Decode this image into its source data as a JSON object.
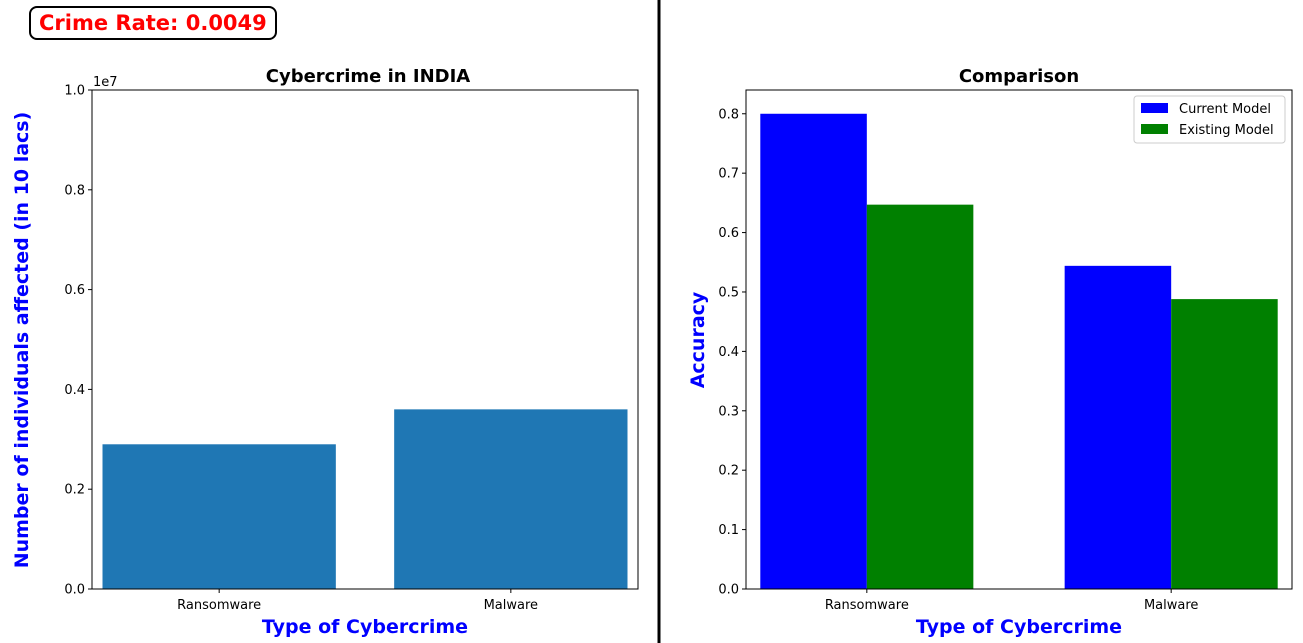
{
  "badge": {
    "text": "Crime Rate: 0.0049",
    "color": "#ff0000"
  },
  "chart_data": [
    {
      "type": "bar",
      "title": "Cybercrime in INDIA",
      "xlabel": "Type of Cybercrime",
      "ylabel": "Number of individuals affected (in 10 lacs)",
      "label_color": "#0000ff",
      "offset_text": "1e7",
      "categories": [
        "Ransomware",
        "Malware"
      ],
      "series": [
        {
          "values": [
            2900000,
            3600000
          ],
          "color": "#1f77b4"
        }
      ],
      "ylim": [
        0,
        10000000
      ],
      "yticks": [
        0,
        2000000,
        4000000,
        6000000,
        8000000,
        10000000
      ],
      "ytick_labels": [
        "0.0",
        "0.2",
        "0.4",
        "0.6",
        "0.8",
        "1.0"
      ],
      "grid": false
    },
    {
      "type": "bar",
      "title": "Comparison",
      "xlabel": "Type of Cybercrime",
      "ylabel": "Accuracy",
      "label_color": "#0000ff",
      "categories": [
        "Ransomware",
        "Malware"
      ],
      "series": [
        {
          "name": "Current Model",
          "values": [
            0.8,
            0.544
          ],
          "color": "#0000ff"
        },
        {
          "name": "Existing Model",
          "values": [
            0.647,
            0.488
          ],
          "color": "#008000"
        }
      ],
      "ylim": [
        0,
        0.84
      ],
      "yticks": [
        0,
        0.1,
        0.2,
        0.3,
        0.4,
        0.5,
        0.6,
        0.7,
        0.8
      ],
      "ytick_labels": [
        "0.0",
        "0.1",
        "0.2",
        "0.3",
        "0.4",
        "0.5",
        "0.6",
        "0.7",
        "0.8"
      ],
      "legend": "top-right",
      "grid": false
    }
  ]
}
